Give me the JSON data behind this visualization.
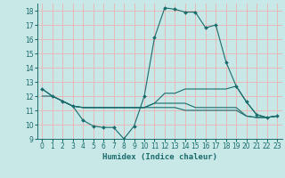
{
  "background_color": "#c8e8e8",
  "grid_color": "#e8b8b8",
  "line_color": "#1a6b6b",
  "xlabel": "Humidex (Indice chaleur)",
  "ylim": [
    9,
    18.5
  ],
  "xlim": [
    -0.5,
    23.5
  ],
  "yticks": [
    9,
    10,
    11,
    12,
    13,
    14,
    15,
    16,
    17,
    18
  ],
  "xticks": [
    0,
    1,
    2,
    3,
    4,
    5,
    6,
    7,
    8,
    9,
    10,
    11,
    12,
    13,
    14,
    15,
    16,
    17,
    18,
    19,
    20,
    21,
    22,
    23
  ],
  "line1_x": [
    0,
    1,
    2,
    3,
    4,
    5,
    6,
    7,
    8,
    9,
    10,
    11,
    12,
    13,
    14,
    15,
    16,
    17,
    18,
    19,
    20,
    21,
    22,
    23
  ],
  "line1_y": [
    12.5,
    12.0,
    11.65,
    11.3,
    10.3,
    9.9,
    9.8,
    9.8,
    9.0,
    9.9,
    12.0,
    16.1,
    18.2,
    18.1,
    17.9,
    17.9,
    16.8,
    17.0,
    14.4,
    12.7,
    11.6,
    10.7,
    10.5,
    10.6
  ],
  "line2_x": [
    0,
    1,
    2,
    3,
    4,
    5,
    6,
    7,
    8,
    9,
    10,
    11,
    12,
    13,
    14,
    15,
    16,
    17,
    18,
    19,
    20,
    21,
    22,
    23
  ],
  "line2_y": [
    12.5,
    12.0,
    11.65,
    11.3,
    11.2,
    11.2,
    11.2,
    11.2,
    11.2,
    11.2,
    11.2,
    11.5,
    12.2,
    12.2,
    12.5,
    12.5,
    12.5,
    12.5,
    12.5,
    12.7,
    11.6,
    10.7,
    10.5,
    10.6
  ],
  "line3_x": [
    0,
    1,
    2,
    3,
    4,
    5,
    6,
    7,
    8,
    9,
    10,
    11,
    12,
    13,
    14,
    15,
    16,
    17,
    18,
    19,
    20,
    21,
    22,
    23
  ],
  "line3_y": [
    12.0,
    12.0,
    11.65,
    11.3,
    11.2,
    11.2,
    11.2,
    11.2,
    11.2,
    11.2,
    11.2,
    11.5,
    11.5,
    11.5,
    11.5,
    11.2,
    11.2,
    11.2,
    11.2,
    11.2,
    10.6,
    10.5,
    10.5,
    10.6
  ],
  "line4_x": [
    2,
    3,
    4,
    5,
    6,
    7,
    8,
    9,
    10,
    11,
    12,
    13,
    14,
    15,
    16,
    17,
    18,
    19,
    20,
    21,
    22,
    23
  ],
  "line4_y": [
    11.65,
    11.3,
    11.2,
    11.2,
    11.2,
    11.2,
    11.2,
    11.2,
    11.2,
    11.2,
    11.2,
    11.2,
    11.0,
    11.0,
    11.0,
    11.0,
    11.0,
    11.0,
    10.6,
    10.5,
    10.5,
    10.6
  ]
}
